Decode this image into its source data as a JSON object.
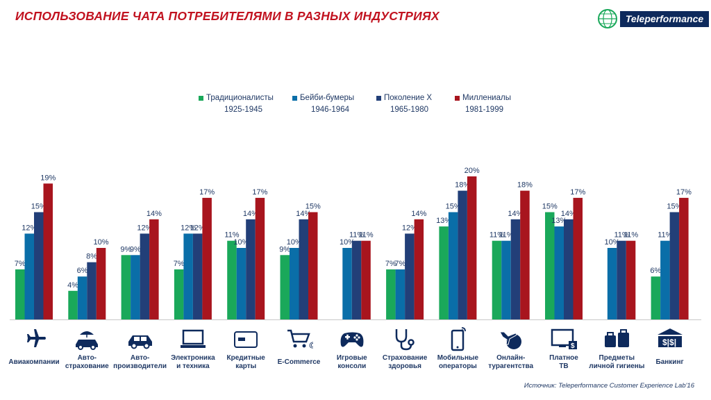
{
  "header": {
    "title": "ИСПОЛЬЗОВАНИЕ ЧАТА ПОТРЕБИТЕЛЯМИ В РАЗНЫХ ИНДУСТРИЯХ",
    "logo_text": "Teleperformance"
  },
  "source": "Источник: Teleperformance Customer Experience Lab'16",
  "colors": {
    "traditionalists": "#1aa85a",
    "boomers": "#0a6ea8",
    "genx": "#223f78",
    "millennials": "#a8151e",
    "brand": "#0e2a5c",
    "title": "#c1121f"
  },
  "legend": [
    {
      "name": "Традиционалисты",
      "years": "1925-1945"
    },
    {
      "name": "Бейби-бумеры",
      "years": "1946-1964"
    },
    {
      "name": "Поколение X",
      "years": "1965-1980"
    },
    {
      "name": "Миллениалы",
      "years": "1981-1999"
    }
  ],
  "industries": [
    {
      "label": "Авиакомпании",
      "icon": "airplane-icon"
    },
    {
      "label": "Авто-\nстрахование",
      "icon": "car-umbrella-icon"
    },
    {
      "label": "Авто-\nпроизводители",
      "icon": "car-icon"
    },
    {
      "label": "Электроника\nи техника",
      "icon": "laptop-icon"
    },
    {
      "label": "Кредитные\nкарты",
      "icon": "credit-card-icon"
    },
    {
      "label": "E-Commerce",
      "icon": "shopping-cart-icon"
    },
    {
      "label": "Игровые\nконсоли",
      "icon": "gamepad-icon"
    },
    {
      "label": "Страхование\nздоровья",
      "icon": "stethoscope-icon"
    },
    {
      "label": "Мобильные\nоператоры",
      "icon": "mobile-phone-icon"
    },
    {
      "label": "Онлайн-\nтурагентства",
      "icon": "globe-plane-icon"
    },
    {
      "label": "Платное\nТВ",
      "icon": "tv-icon"
    },
    {
      "label": "Предметы\nличной гигиены",
      "icon": "bags-icon"
    },
    {
      "label": "Банкинг",
      "icon": "bank-icon"
    }
  ],
  "chart_data": {
    "type": "bar",
    "title": "ИСПОЛЬЗОВАНИЕ ЧАТА ПОТРЕБИТЕЛЯМИ В РАЗНЫХ ИНДУСТРИЯХ",
    "categories": [
      "Авиакомпании",
      "Авто-страхование",
      "Авто-производители",
      "Электроника и техника",
      "Кредитные карты",
      "E-Commerce",
      "Игровые консоли",
      "Страхование здоровья",
      "Мобильные операторы",
      "Онлайн-турагентства",
      "Платное ТВ",
      "Предметы личной гигиены",
      "Банкинг"
    ],
    "series": [
      {
        "name": "Традиционалисты",
        "values": [
          7,
          4,
          9,
          7,
          11,
          9,
          null,
          7,
          13,
          11,
          15,
          null,
          6
        ]
      },
      {
        "name": "Бейби-бумеры",
        "values": [
          12,
          6,
          9,
          12,
          10,
          10,
          10,
          7,
          15,
          11,
          13,
          10,
          11
        ]
      },
      {
        "name": "Поколение X",
        "values": [
          15,
          8,
          12,
          12,
          14,
          14,
          11,
          12,
          18,
          14,
          14,
          11,
          15
        ]
      },
      {
        "name": "Миллениалы",
        "values": [
          19,
          10,
          14,
          17,
          17,
          15,
          11,
          14,
          20,
          18,
          17,
          11,
          17
        ]
      }
    ],
    "value_suffix": "%",
    "ylim": [
      0,
      20
    ],
    "grid": false,
    "legend_position": "top-center"
  }
}
